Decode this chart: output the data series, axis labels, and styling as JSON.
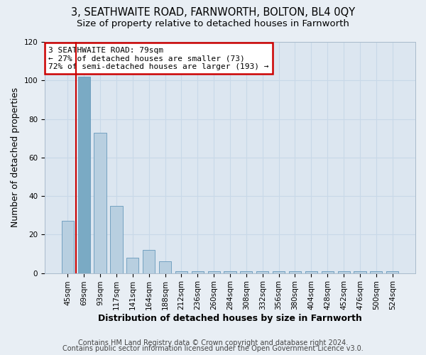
{
  "title": "3, SEATHWAITE ROAD, FARNWORTH, BOLTON, BL4 0QY",
  "subtitle": "Size of property relative to detached houses in Farnworth",
  "xlabel": "Distribution of detached houses by size in Farnworth",
  "ylabel": "Number of detached properties",
  "categories": [
    "45sqm",
    "69sqm",
    "93sqm",
    "117sqm",
    "141sqm",
    "164sqm",
    "188sqm",
    "212sqm",
    "236sqm",
    "260sqm",
    "284sqm",
    "308sqm",
    "332sqm",
    "356sqm",
    "380sqm",
    "404sqm",
    "428sqm",
    "452sqm",
    "476sqm",
    "500sqm",
    "524sqm"
  ],
  "values": [
    27,
    102,
    73,
    35,
    8,
    12,
    6,
    1,
    1,
    1,
    1,
    1,
    1,
    1,
    1,
    1,
    1,
    1,
    1,
    1,
    1
  ],
  "bar_color": "#b8cfe0",
  "highlight_bar_index": 1,
  "highlight_color": "#7aaac4",
  "annotation_line1": "3 SEATHWAITE ROAD: 79sqm",
  "annotation_line2": "← 27% of detached houses are smaller (73)",
  "annotation_line3": "72% of semi-detached houses are larger (193) →",
  "annotation_box_color": "#ffffff",
  "annotation_box_edge": "#cc0000",
  "red_line_x": 0.5,
  "ylim": [
    0,
    120
  ],
  "yticks": [
    0,
    20,
    40,
    60,
    80,
    100,
    120
  ],
  "footer_line1": "Contains HM Land Registry data © Crown copyright and database right 2024.",
  "footer_line2": "Contains public sector information licensed under the Open Government Licence v3.0.",
  "bg_color": "#e8eef4",
  "plot_bg_color": "#dce6f0",
  "grid_color": "#c8d8e8",
  "title_fontsize": 10.5,
  "subtitle_fontsize": 9.5,
  "axis_label_fontsize": 9,
  "tick_fontsize": 7.5,
  "annotation_fontsize": 8,
  "footer_fontsize": 7
}
